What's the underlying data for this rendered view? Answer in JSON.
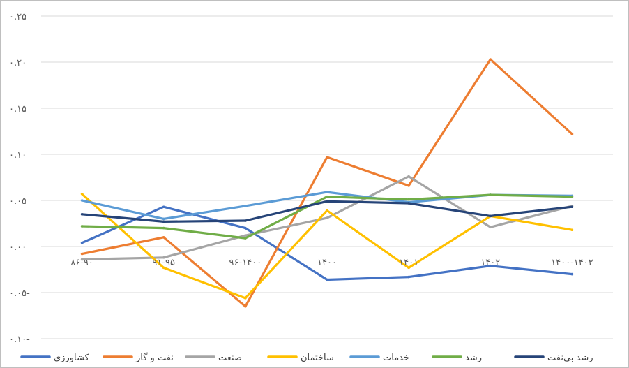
{
  "chart_data": {
    "type": "line",
    "categories": [
      "۸۶-۹۰",
      "۹۱-۹۵",
      "۹۶-۱۴۰۰",
      "۱۴۰۰",
      "۱۴۰۱",
      "۱۴۰۲",
      "۱۴۰۰-۱۴۰۲"
    ],
    "ylim": [
      -0.1,
      0.25
    ],
    "y_tick_values": [
      -0.1,
      -0.05,
      0.0,
      0.05,
      0.1,
      0.15,
      0.2,
      0.25
    ],
    "y_tick_labels": [
      "۰.۱۰-",
      "۰.۰۵-",
      "۰.۰۰",
      "۰.۰۵",
      "۰.۱۰",
      "۰.۱۵",
      "۰.۲۰",
      "۰.۲۵"
    ],
    "grid": true,
    "legend_position": "bottom",
    "series": [
      {
        "name": "کشاورزی",
        "color": "#4472C4",
        "values": [
          0.004,
          0.043,
          0.02,
          -0.036,
          -0.033,
          -0.021,
          -0.03
        ]
      },
      {
        "name": "نفت و گاز",
        "color": "#ED7D31",
        "values": [
          -0.008,
          0.01,
          -0.065,
          0.097,
          0.066,
          0.203,
          0.122
        ]
      },
      {
        "name": "صنعت",
        "color": "#A5A5A5",
        "values": [
          -0.014,
          -0.012,
          0.012,
          0.031,
          0.076,
          0.021,
          0.044
        ]
      },
      {
        "name": "ساختمان",
        "color": "#FFC000",
        "values": [
          0.057,
          -0.023,
          -0.056,
          0.039,
          -0.023,
          0.033,
          0.018
        ]
      },
      {
        "name": "خدمات",
        "color": "#5B9BD5",
        "values": [
          0.05,
          0.03,
          0.044,
          0.059,
          0.048,
          0.056,
          0.055
        ]
      },
      {
        "name": "رشد",
        "color": "#70AD47",
        "values": [
          0.022,
          0.02,
          0.009,
          0.054,
          0.051,
          0.056,
          0.054
        ]
      },
      {
        "name": "رشد بی‌نفت",
        "color": "#264478",
        "values": [
          0.035,
          0.027,
          0.028,
          0.049,
          0.047,
          0.033,
          0.043
        ]
      }
    ]
  }
}
